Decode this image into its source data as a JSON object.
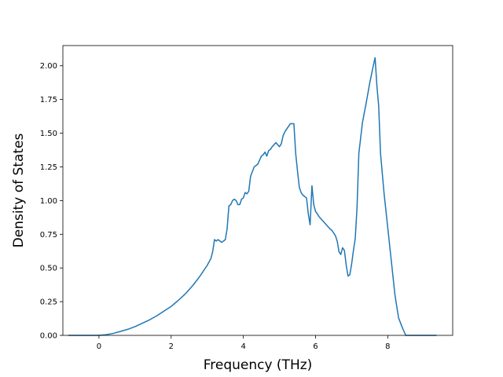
{
  "chart_data": {
    "type": "line",
    "title": "",
    "xlabel": "Frequency (THz)",
    "ylabel": "Density of States",
    "xlim": [
      -1.0,
      9.8
    ],
    "ylim": [
      0.0,
      2.15
    ],
    "xticks": [
      0,
      2,
      4,
      6,
      8
    ],
    "xtick_labels": [
      "0",
      "2",
      "4",
      "6",
      "8"
    ],
    "yticks": [
      0.0,
      0.25,
      0.5,
      0.75,
      1.0,
      1.25,
      1.5,
      1.75,
      2.0
    ],
    "ytick_labels": [
      "0.00",
      "0.25",
      "0.50",
      "0.75",
      "1.00",
      "1.25",
      "1.50",
      "1.75",
      "2.00"
    ],
    "grid": false,
    "line_color": "#1f77b4",
    "series": [
      {
        "x": [
          -0.85,
          -0.5,
          -0.2,
          0.0,
          0.2,
          0.4,
          0.6,
          0.8,
          1.0,
          1.2,
          1.4,
          1.6,
          1.8,
          2.0,
          2.2,
          2.4,
          2.6,
          2.8,
          3.0,
          3.1,
          3.15,
          3.2,
          3.25,
          3.3,
          3.35,
          3.4,
          3.45,
          3.5,
          3.55,
          3.6,
          3.65,
          3.7,
          3.75,
          3.8,
          3.85,
          3.9,
          3.95,
          4.0,
          4.05,
          4.1,
          4.15,
          4.2,
          4.3,
          4.4,
          4.5,
          4.55,
          4.6,
          4.65,
          4.7,
          4.75,
          4.8,
          4.9,
          5.0,
          5.05,
          5.1,
          5.15,
          5.2,
          5.3,
          5.35,
          5.4,
          5.45,
          5.5,
          5.55,
          5.6,
          5.65,
          5.7,
          5.75,
          5.8,
          5.85,
          5.9,
          5.95,
          6.0,
          6.1,
          6.2,
          6.3,
          6.4,
          6.45,
          6.5,
          6.55,
          6.6,
          6.65,
          6.7,
          6.75,
          6.8,
          6.85,
          6.9,
          6.95,
          7.0,
          7.05,
          7.1,
          7.15,
          7.2,
          7.3,
          7.4,
          7.5,
          7.6,
          7.65,
          7.7,
          7.75,
          7.8,
          7.85,
          7.9,
          8.0,
          8.1,
          8.2,
          8.3,
          8.4,
          8.5,
          8.6,
          8.8,
          9.0,
          9.2,
          9.35
        ],
        "y": [
          0.0,
          0.0,
          0.0,
          0.0,
          0.005,
          0.015,
          0.03,
          0.045,
          0.065,
          0.09,
          0.115,
          0.145,
          0.18,
          0.215,
          0.26,
          0.31,
          0.37,
          0.44,
          0.52,
          0.57,
          0.62,
          0.71,
          0.7,
          0.71,
          0.7,
          0.69,
          0.7,
          0.71,
          0.79,
          0.96,
          0.97,
          1.0,
          1.01,
          1.0,
          0.97,
          0.97,
          1.01,
          1.02,
          1.06,
          1.05,
          1.07,
          1.18,
          1.25,
          1.27,
          1.33,
          1.34,
          1.36,
          1.33,
          1.37,
          1.38,
          1.4,
          1.43,
          1.4,
          1.42,
          1.48,
          1.51,
          1.53,
          1.57,
          1.57,
          1.57,
          1.35,
          1.22,
          1.1,
          1.06,
          1.04,
          1.03,
          1.02,
          0.9,
          0.82,
          1.11,
          0.97,
          0.92,
          0.88,
          0.85,
          0.82,
          0.79,
          0.78,
          0.76,
          0.74,
          0.7,
          0.62,
          0.6,
          0.65,
          0.63,
          0.52,
          0.44,
          0.45,
          0.53,
          0.63,
          0.72,
          0.95,
          1.35,
          1.58,
          1.72,
          1.87,
          2.0,
          2.06,
          1.85,
          1.7,
          1.35,
          1.2,
          1.05,
          0.8,
          0.55,
          0.3,
          0.13,
          0.06,
          0.0,
          0.0,
          0.0,
          0.0,
          0.0,
          0.0
        ]
      }
    ]
  }
}
